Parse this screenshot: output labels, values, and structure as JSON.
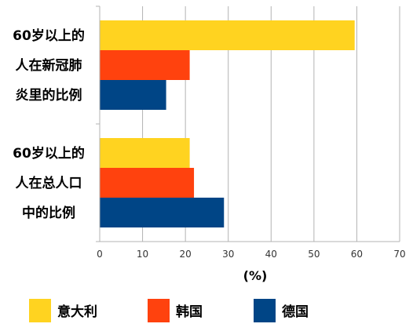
{
  "chart_data": {
    "type": "bar",
    "orientation": "horizontal",
    "categories": [
      [
        "60岁以上的",
        "人在新冠肺",
        "炎里的比例"
      ],
      [
        "60岁以上的",
        "人在总人口",
        "中的比例"
      ]
    ],
    "series": [
      {
        "name": "意大利",
        "color": "#FFD320",
        "values": [
          59.5,
          21
        ]
      },
      {
        "name": "韩国",
        "color": "#FF420E",
        "values": [
          21,
          22
        ]
      },
      {
        "name": "德国",
        "color": "#004586",
        "values": [
          15.5,
          29
        ]
      }
    ],
    "xlabel": "(%)",
    "xlim": [
      0,
      70
    ],
    "xticks": [
      0,
      10,
      20,
      30,
      40,
      50,
      60,
      70
    ],
    "grid": true,
    "legend_position": "bottom"
  }
}
